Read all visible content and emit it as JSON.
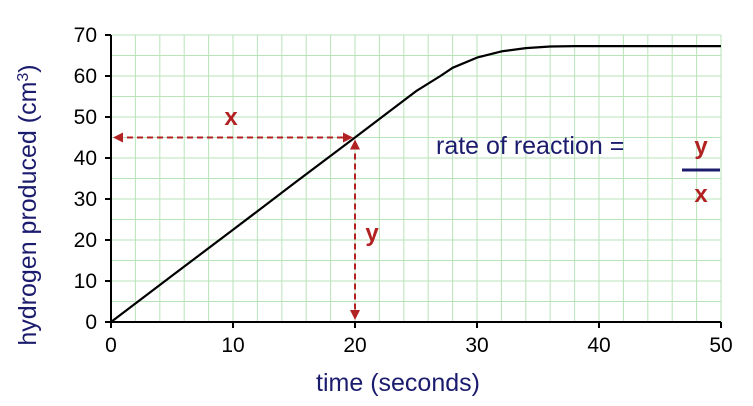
{
  "chart_data": {
    "type": "line",
    "xlabel": "time (seconds)",
    "ylabel_main": "hydrogen produced (cm",
    "ylabel_sup": "3",
    "ylabel_end": ")",
    "xlim": [
      0,
      50
    ],
    "ylim": [
      0,
      70
    ],
    "xticks": [
      0,
      10,
      20,
      30,
      40,
      50
    ],
    "yticks": [
      0,
      10,
      20,
      30,
      40,
      50,
      60,
      70
    ],
    "grid": true,
    "series": [
      {
        "color": "#000000",
        "points": [
          [
            0,
            0
          ],
          [
            5,
            11.3
          ],
          [
            10,
            22.5
          ],
          [
            15,
            33.8
          ],
          [
            20,
            45
          ],
          [
            25,
            56.3
          ],
          [
            27,
            60
          ],
          [
            28,
            62
          ],
          [
            30,
            64.5
          ],
          [
            32,
            66
          ],
          [
            34,
            66.8
          ],
          [
            36,
            67.2
          ],
          [
            38,
            67.3
          ],
          [
            50,
            67.3
          ]
        ]
      }
    ],
    "annotations": {
      "x_label": "x",
      "y_label": "y",
      "ref_point": [
        20,
        45
      ],
      "color": "#b22222",
      "formula_text": "rate of reaction  =",
      "formula_numerator": "y",
      "formula_denominator": "x"
    },
    "colors": {
      "grid": "#b9e3b9",
      "axis": "#000000",
      "title": "#1c1c6e"
    }
  }
}
